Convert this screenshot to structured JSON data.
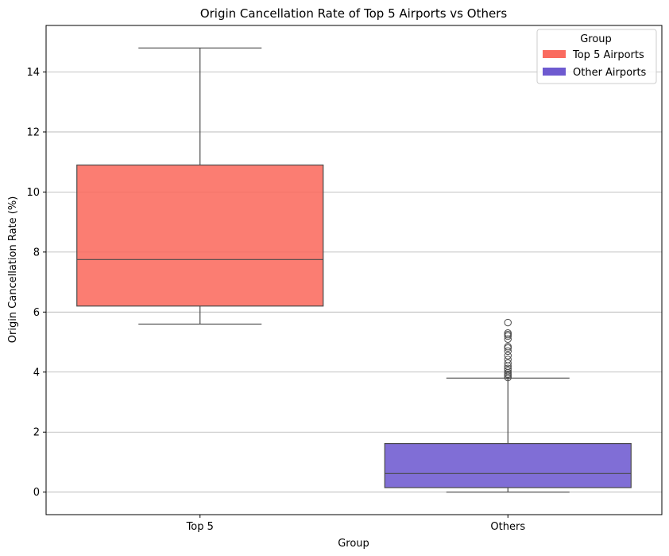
{
  "chart_data": {
    "type": "box",
    "title": "Origin Cancellation Rate of Top 5 Airports vs Others",
    "xlabel": "Group",
    "ylabel": "Origin Cancellation Rate (%)",
    "ylim": [
      -0.75,
      15.55
    ],
    "yticks": [
      0,
      2,
      4,
      6,
      8,
      10,
      12,
      14
    ],
    "grid": "horizontal",
    "categories": [
      "Top 5",
      "Others"
    ],
    "series": [
      {
        "name": "Top 5 Airports",
        "category": "Top 5",
        "color": "#fa6b5f",
        "whisker_low": 5.6,
        "q1": 6.2,
        "median": 7.75,
        "q3": 10.9,
        "whisker_high": 14.8,
        "outliers": []
      },
      {
        "name": "Other Airports",
        "category": "Others",
        "color": "#6e5ad0",
        "whisker_low": 0.0,
        "q1": 0.15,
        "median": 0.62,
        "q3": 1.62,
        "whisker_high": 3.8,
        "outliers": [
          3.82,
          3.88,
          3.93,
          3.98,
          4.05,
          4.12,
          4.2,
          4.3,
          4.42,
          4.55,
          4.7,
          4.8,
          4.85,
          5.1,
          5.2,
          5.25,
          5.3,
          5.65
        ]
      }
    ],
    "legend": {
      "title": "Group",
      "position": "top-right",
      "entries": [
        {
          "label": "Top 5 Airports",
          "color": "#fa6b5f"
        },
        {
          "label": "Other Airports",
          "color": "#6e5ad0"
        }
      ]
    }
  }
}
